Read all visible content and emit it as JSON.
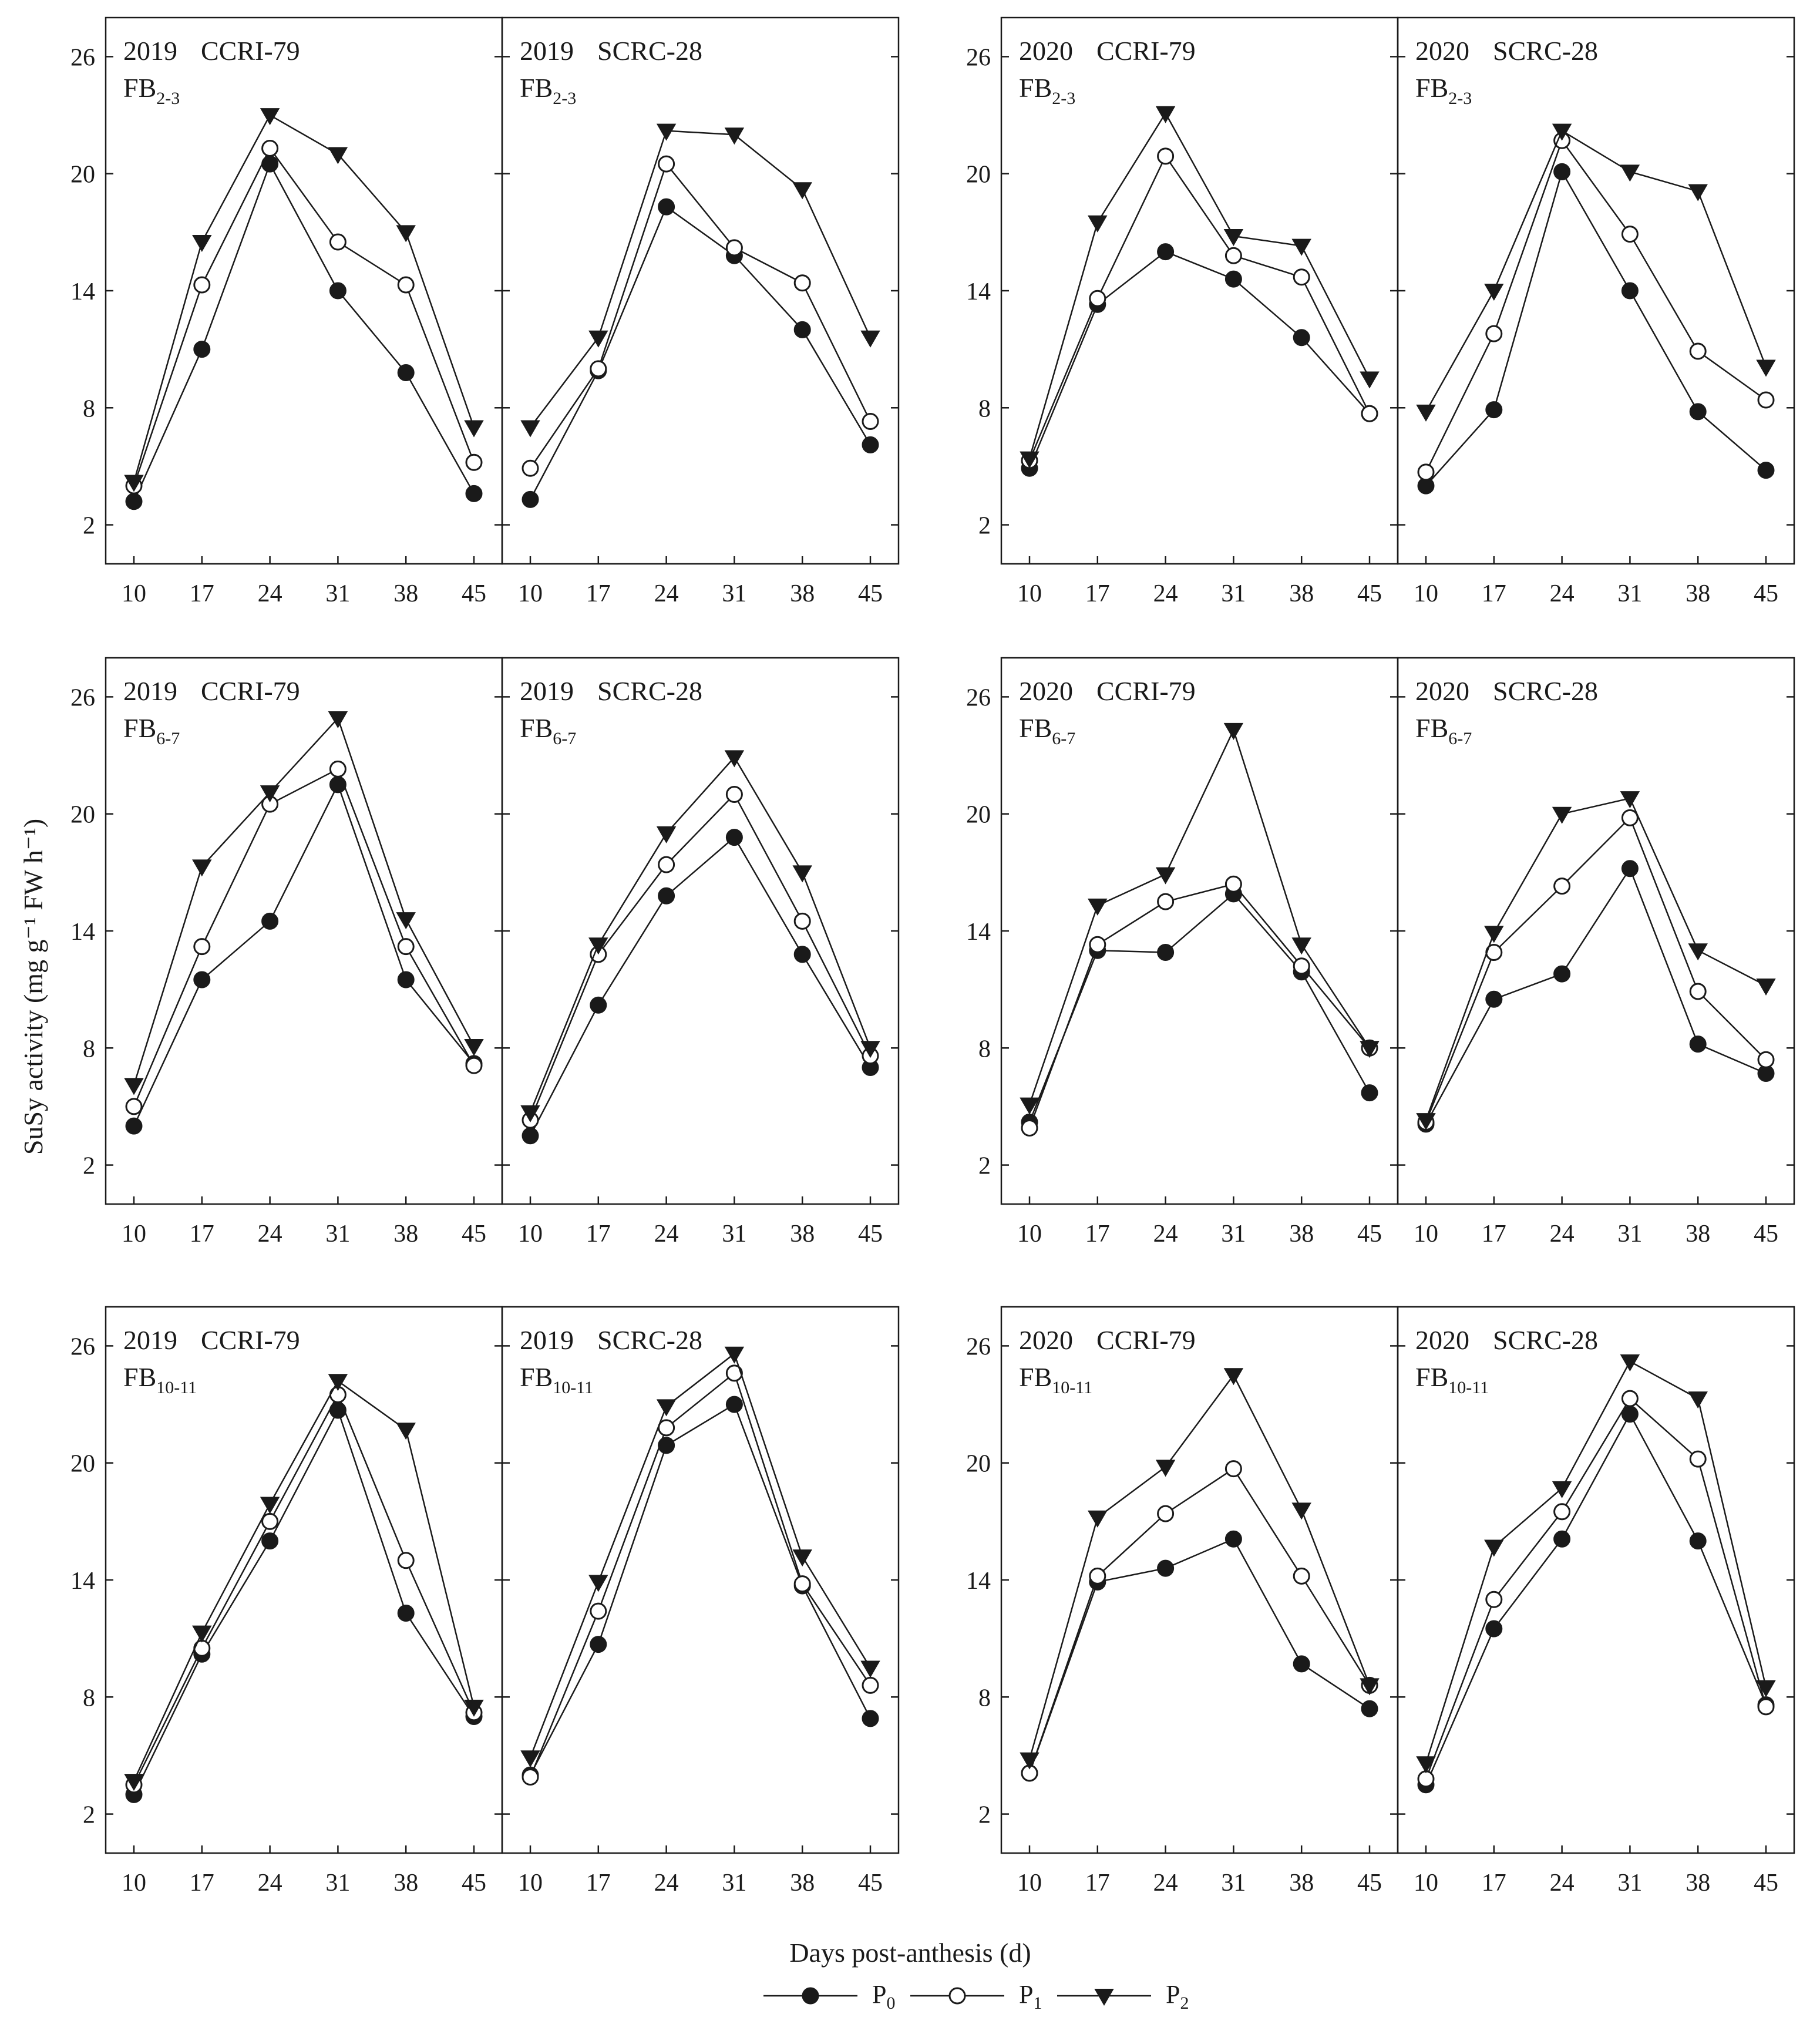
{
  "chart_data": {
    "type": "line",
    "x": [
      10,
      17,
      24,
      31,
      38,
      45
    ],
    "ylim": [
      0,
      28
    ],
    "yticks": [
      2,
      8,
      14,
      20,
      26
    ],
    "xlabel": "Days post-anthesis (d)",
    "ylabel": "SuSy activity (mg g⁻¹ FW h⁻¹)",
    "legend": {
      "placement": "bottom-center",
      "entries": [
        {
          "key": "P0",
          "base": "P",
          "sub": "0",
          "marker": "filled-circle"
        },
        {
          "key": "P1",
          "base": "P",
          "sub": "1",
          "marker": "open-circle"
        },
        {
          "key": "P2",
          "base": "P",
          "sub": "2",
          "marker": "filled-triangle-down"
        }
      ]
    },
    "panels": [
      {
        "year": "2019",
        "cultivar": "CCRI-79",
        "fb_base": "FB",
        "fb_sub": "2-3",
        "P0": [
          3.2,
          11.0,
          20.5,
          14.0,
          9.8,
          3.6
        ],
        "P1": [
          4.0,
          14.3,
          21.3,
          16.5,
          14.3,
          5.2
        ],
        "P2": [
          4.2,
          16.5,
          23.0,
          21.0,
          17.0,
          7.0
        ]
      },
      {
        "year": "2019",
        "cultivar": "SCRC-28",
        "fb_base": "FB",
        "fb_sub": "2-3",
        "P0": [
          3.3,
          9.9,
          18.3,
          15.8,
          12.0,
          6.1
        ],
        "P1": [
          4.9,
          10.0,
          20.5,
          16.2,
          14.4,
          7.3
        ],
        "P2": [
          7.0,
          11.6,
          22.2,
          22.0,
          19.2,
          11.6
        ]
      },
      {
        "year": "2020",
        "cultivar": "CCRI-79",
        "fb_base": "FB",
        "fb_sub": "2-3",
        "P0": [
          4.9,
          13.3,
          16.0,
          14.6,
          11.6,
          7.7
        ],
        "P1": [
          5.3,
          13.6,
          20.9,
          15.8,
          14.7,
          7.7
        ],
        "P2": [
          5.4,
          17.5,
          23.1,
          16.8,
          16.3,
          9.5
        ]
      },
      {
        "year": "2020",
        "cultivar": "SCRC-28",
        "fb_base": "FB",
        "fb_sub": "2-3",
        "P0": [
          4.0,
          7.9,
          20.1,
          14.0,
          7.8,
          4.8
        ],
        "P1": [
          4.7,
          11.8,
          21.7,
          16.9,
          10.9,
          8.4
        ],
        "P2": [
          7.8,
          14.0,
          22.2,
          20.1,
          19.1,
          10.1
        ]
      },
      {
        "year": "2019",
        "cultivar": "CCRI-79",
        "fb_base": "FB",
        "fb_sub": "6-7",
        "P0": [
          4.0,
          11.5,
          14.5,
          21.5,
          11.5,
          7.2
        ],
        "P1": [
          5.0,
          13.2,
          20.5,
          22.3,
          13.2,
          7.1
        ],
        "P2": [
          6.1,
          17.3,
          21.1,
          24.9,
          14.6,
          8.1
        ]
      },
      {
        "year": "2019",
        "cultivar": "SCRC-28",
        "fb_base": "FB",
        "fb_sub": "6-7",
        "P0": [
          3.5,
          10.2,
          15.8,
          18.8,
          12.8,
          7.0
        ],
        "P1": [
          4.3,
          12.8,
          17.4,
          21.0,
          14.5,
          7.6
        ],
        "P2": [
          4.7,
          13.3,
          19.0,
          22.9,
          17.0,
          8.0
        ]
      },
      {
        "year": "2020",
        "cultivar": "CCRI-79",
        "fb_base": "FB",
        "fb_sub": "6-7",
        "P0": [
          4.2,
          13.0,
          12.9,
          15.9,
          11.9,
          5.7
        ],
        "P1": [
          3.9,
          13.3,
          15.5,
          16.4,
          12.2,
          8.0
        ],
        "P2": [
          5.1,
          15.3,
          16.9,
          24.3,
          13.3,
          8.0
        ]
      },
      {
        "year": "2020",
        "cultivar": "SCRC-28",
        "fb_base": "FB",
        "fb_sub": "6-7",
        "P0": [
          4.1,
          10.5,
          11.8,
          17.2,
          8.2,
          6.7
        ],
        "P1": [
          4.2,
          12.9,
          16.3,
          19.8,
          10.9,
          7.4
        ],
        "P2": [
          4.3,
          13.9,
          20.0,
          20.8,
          13.0,
          11.2
        ]
      },
      {
        "year": "2019",
        "cultivar": "CCRI-79",
        "fb_base": "FB",
        "fb_sub": "10-11",
        "P0": [
          3.0,
          10.2,
          16.0,
          22.7,
          12.3,
          7.0
        ],
        "P1": [
          3.5,
          10.5,
          17.0,
          23.5,
          15.0,
          7.2
        ],
        "P2": [
          3.7,
          11.3,
          17.9,
          24.2,
          21.7,
          7.5
        ]
      },
      {
        "year": "2019",
        "cultivar": "SCRC-28",
        "fb_base": "FB",
        "fb_sub": "10-11",
        "P0": [
          4.0,
          10.7,
          20.9,
          23.0,
          13.7,
          6.9
        ],
        "P1": [
          3.9,
          12.4,
          21.8,
          24.6,
          13.8,
          8.6
        ],
        "P2": [
          4.9,
          13.9,
          22.9,
          25.6,
          15.2,
          9.5
        ]
      },
      {
        "year": "2020",
        "cultivar": "CCRI-79",
        "fb_base": "FB",
        "fb_sub": "10-11",
        "P0": [
          4.1,
          13.9,
          14.6,
          16.1,
          9.7,
          7.4
        ],
        "P1": [
          4.1,
          14.2,
          17.4,
          19.7,
          14.2,
          8.6
        ],
        "P2": [
          4.8,
          17.2,
          19.8,
          24.5,
          17.6,
          8.6
        ]
      },
      {
        "year": "2020",
        "cultivar": "SCRC-28",
        "fb_base": "FB",
        "fb_sub": "10-11",
        "P0": [
          3.5,
          11.5,
          16.1,
          22.5,
          16.0,
          7.6
        ],
        "P1": [
          3.8,
          13.0,
          17.5,
          23.3,
          20.2,
          7.5
        ],
        "P2": [
          4.6,
          15.7,
          18.7,
          25.2,
          23.3,
          8.5
        ]
      }
    ]
  }
}
